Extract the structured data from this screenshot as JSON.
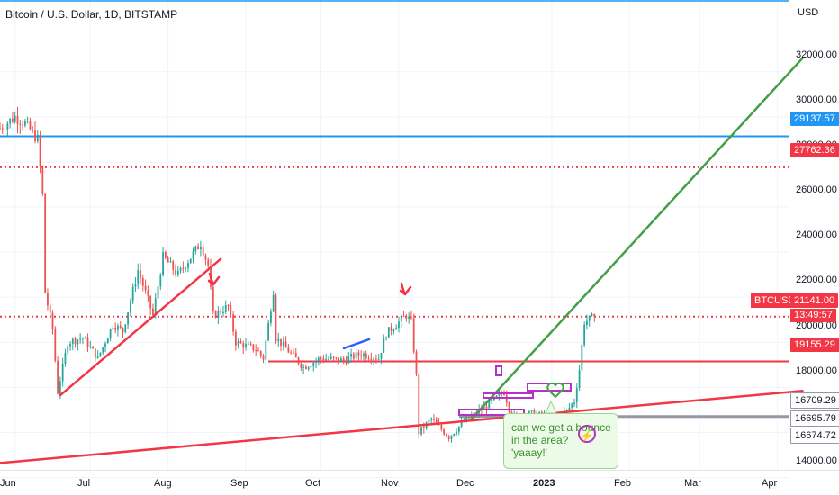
{
  "header": {
    "title": "Bitcoin / U.S. Dollar, 1D, BITSTAMP",
    "currency": "USD"
  },
  "price_axis": {
    "labels": [
      "32000.00",
      "30000.00",
      "28000.00",
      "26000.00",
      "24000.00",
      "22000.00",
      "20000.00",
      "18000.00",
      "14000.00"
    ]
  },
  "time_axis": {
    "labels": [
      "Jun",
      "Jul",
      "Aug",
      "Sep",
      "Oct",
      "Nov",
      "Dec",
      "2023",
      "Feb",
      "Mar",
      "Apr"
    ]
  },
  "price_tags": {
    "blue_line": "29137.57",
    "dotted_red": "27762.36",
    "symbol": "BTCUSD",
    "last_price": "21141.00",
    "countdown": "13:49:57",
    "support_red": "19155.29",
    "gray_level": "16709.29",
    "level_2": "16695.79",
    "level_3": "16674.72"
  },
  "note": {
    "line1": "can we get a bounce",
    "line2": "in the area?",
    "line3": "'yaaay!'"
  },
  "colors": {
    "bullish": "#26a69a",
    "bearish": "#ef5350",
    "blue_line": "#2196f3",
    "red_line": "#f23645",
    "green_line": "#43a047",
    "gray_line": "#9598a1",
    "purple": "#b531c4"
  },
  "chart_data": {
    "type": "candlestick",
    "title": "Bitcoin / U.S. Dollar, 1D, BITSTAMP",
    "ylabel": "USD",
    "ylim": [
      13700,
      33800
    ],
    "x_ticks": [
      "Jun",
      "Jul",
      "Aug",
      "Sep",
      "Oct",
      "Nov",
      "Dec",
      "2023",
      "Feb",
      "Mar",
      "Apr"
    ],
    "horizontal_levels": [
      {
        "value": 29137.57,
        "style": "solid",
        "color": "#2196f3"
      },
      {
        "value": 27762.36,
        "style": "dotted",
        "color": "#f23645"
      },
      {
        "value": 21141.0,
        "style": "dotted",
        "color": "#f23645"
      },
      {
        "value": 19155.29,
        "style": "solid",
        "color": "#f23645"
      },
      {
        "value": 16709.29,
        "style": "solid",
        "color": "#9598a1"
      }
    ],
    "close_path": [
      [
        "2022-05-26",
        29500
      ],
      [
        "2022-06-01",
        30000
      ],
      [
        "2022-06-05",
        29700
      ],
      [
        "2022-06-10",
        29000
      ],
      [
        "2022-06-12",
        26500
      ],
      [
        "2022-06-13",
        22200
      ],
      [
        "2022-06-16",
        20600
      ],
      [
        "2022-06-18",
        17800
      ],
      [
        "2022-06-22",
        20000
      ],
      [
        "2022-06-28",
        20200
      ],
      [
        "2022-07-04",
        19300
      ],
      [
        "2022-07-10",
        20800
      ],
      [
        "2022-07-14",
        20500
      ],
      [
        "2022-07-20",
        23200
      ],
      [
        "2022-07-26",
        21200
      ],
      [
        "2022-07-30",
        23800
      ],
      [
        "2022-08-05",
        23000
      ],
      [
        "2022-08-14",
        24400
      ],
      [
        "2022-08-17",
        23400
      ],
      [
        "2022-08-19",
        21200
      ],
      [
        "2022-08-25",
        21600
      ],
      [
        "2022-08-28",
        20000
      ],
      [
        "2022-09-05",
        19700
      ],
      [
        "2022-09-08",
        19300
      ],
      [
        "2022-09-12",
        22300
      ],
      [
        "2022-09-13",
        20200
      ],
      [
        "2022-09-19",
        19500
      ],
      [
        "2022-09-24",
        18900
      ],
      [
        "2022-10-01",
        19300
      ],
      [
        "2022-10-10",
        19200
      ],
      [
        "2022-10-17",
        19500
      ],
      [
        "2022-10-24",
        19300
      ],
      [
        "2022-10-27",
        20400
      ],
      [
        "2022-11-04",
        21200
      ],
      [
        "2022-11-06",
        20900
      ],
      [
        "2022-11-08",
        18500
      ],
      [
        "2022-11-09",
        16000
      ],
      [
        "2022-11-14",
        16600
      ],
      [
        "2022-11-21",
        15800
      ],
      [
        "2022-11-27",
        16500
      ],
      [
        "2022-12-05",
        17100
      ],
      [
        "2022-12-13",
        17800
      ],
      [
        "2022-12-16",
        16700
      ],
      [
        "2022-12-25",
        16850
      ],
      [
        "2023-01-01",
        16600
      ],
      [
        "2023-01-07",
        16950
      ],
      [
        "2023-01-10",
        17400
      ],
      [
        "2023-01-12",
        18800
      ],
      [
        "2023-01-14",
        20900
      ],
      [
        "2023-01-18",
        21141
      ]
    ],
    "trendlines": [
      {
        "color": "#43a047",
        "from": [
          "2022-11-30",
          16600
        ],
        "to": [
          "2023-04-11",
          32600
        ]
      },
      {
        "color": "#f23645",
        "from": [
          "2022-05-26",
          14650
        ],
        "to": [
          "2023-04-11",
          17850
        ]
      },
      {
        "color": "#f23645",
        "from": [
          "2022-06-19",
          17650
        ],
        "to": [
          "2022-08-22",
          23700
        ]
      }
    ],
    "annotations": [
      {
        "text": "can we get a bounce in the area? 'yaaay!'",
        "date": "2023-01-15",
        "price": 16700
      }
    ]
  }
}
